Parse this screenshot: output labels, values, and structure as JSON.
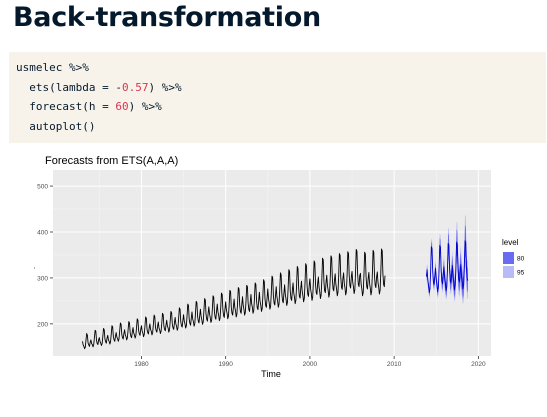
{
  "slide": {
    "title": "Back-transformation"
  },
  "code": {
    "line1": "usmelec %>%",
    "line2": {
      "pre": "  ets(lambda = -",
      "num": "0.57",
      "post": ") %>%"
    },
    "line3": {
      "pre": "  forecast(h = ",
      "num": "60",
      "post": ") %>%"
    },
    "line4": "  autoplot()"
  },
  "colors": {
    "title": "#05192d",
    "code_bg": "#f7f3eb",
    "number": "#dd3350",
    "panel": "#ebebeb",
    "series": "#000000",
    "forecast": "#0000cc",
    "pi80": "#595cf0",
    "pi95": "#b1b4f8"
  },
  "chart_data": {
    "type": "line",
    "title": "Forecasts from ETS(A,A,A)",
    "xlabel": "Time",
    "ylabel": ".",
    "xlim": [
      1969.5,
      2021.5
    ],
    "ylim": [
      130,
      535
    ],
    "x_ticks": [
      1980,
      1990,
      2000,
      2010,
      2020
    ],
    "y_ticks": [
      200,
      300,
      400,
      500
    ],
    "grid": true,
    "legend": {
      "title": "level",
      "entries": [
        "80",
        "95"
      ],
      "placement": "right"
    },
    "historical": {
      "name": "usmelec",
      "start": 1973.0,
      "step": 0.0833333,
      "values": [
        162,
        154,
        151,
        146,
        149,
        165,
        179,
        175,
        158,
        154,
        151,
        160,
        165,
        157,
        155,
        150,
        155,
        170,
        186,
        184,
        164,
        157,
        155,
        165,
        170,
        161,
        158,
        153,
        157,
        173,
        190,
        187,
        167,
        161,
        158,
        169,
        175,
        165,
        162,
        156,
        161,
        178,
        196,
        193,
        172,
        165,
        162,
        173,
        181,
        171,
        168,
        162,
        167,
        184,
        202,
        199,
        177,
        170,
        167,
        179,
        187,
        176,
        172,
        165,
        170,
        187,
        205,
        202,
        180,
        173,
        170,
        183,
        192,
        180,
        176,
        169,
        174,
        192,
        211,
        208,
        185,
        178,
        175,
        188,
        196,
        184,
        180,
        172,
        177,
        195,
        215,
        212,
        188,
        181,
        178,
        191,
        200,
        188,
        184,
        176,
        181,
        199,
        219,
        216,
        192,
        185,
        182,
        195,
        204,
        191,
        187,
        179,
        184,
        202,
        223,
        220,
        195,
        188,
        185,
        198,
        208,
        195,
        191,
        182,
        187,
        206,
        227,
        224,
        199,
        191,
        188,
        202,
        214,
        200,
        195,
        186,
        191,
        212,
        235,
        232,
        205,
        196,
        193,
        207,
        220,
        206,
        200,
        191,
        196,
        218,
        243,
        240,
        211,
        201,
        197,
        212,
        226,
        211,
        205,
        195,
        200,
        223,
        249,
        246,
        216,
        206,
        202,
        218,
        232,
        216,
        209,
        199,
        204,
        228,
        255,
        252,
        221,
        210,
        206,
        223,
        237,
        221,
        214,
        203,
        208,
        232,
        261,
        258,
        226,
        214,
        210,
        228,
        243,
        226,
        219,
        207,
        212,
        237,
        267,
        264,
        231,
        218,
        214,
        232,
        248,
        231,
        223,
        211,
        217,
        242,
        273,
        270,
        236,
        223,
        219,
        237,
        254,
        236,
        228,
        215,
        221,
        247,
        279,
        276,
        241,
        227,
        223,
        242,
        259,
        240,
        232,
        219,
        225,
        251,
        284,
        281,
        245,
        231,
        227,
        246,
        264,
        244,
        236,
        223,
        229,
        255,
        289,
        286,
        250,
        235,
        231,
        250,
        269,
        249,
        241,
        227,
        233,
        261,
        296,
        292,
        255,
        240,
        236,
        256,
        276,
        255,
        246,
        232,
        238,
        267,
        304,
        300,
        261,
        245,
        241,
        262,
        281,
        259,
        250,
        236,
        243,
        273,
        311,
        307,
        267,
        250,
        246,
        267,
        285,
        263,
        254,
        240,
        247,
        278,
        318,
        314,
        272,
        255,
        251,
        273,
        289,
        267,
        258,
        244,
        251,
        283,
        325,
        321,
        278,
        260,
        256,
        278,
        293,
        271,
        262,
        248,
        255,
        287,
        331,
        327,
        283,
        264,
        260,
        283,
        298,
        276,
        266,
        251,
        259,
        292,
        337,
        333,
        287,
        268,
        264,
        287,
        302,
        280,
        270,
        255,
        263,
        297,
        343,
        339,
        292,
        272,
        268,
        291,
        306,
        283,
        273,
        258,
        266,
        301,
        348,
        344,
        297,
        276,
        272,
        295,
        309,
        286,
        276,
        261,
        269,
        304,
        353,
        349,
        301,
        280,
        275,
        299,
        311,
        288,
        278,
        263,
        271,
        307,
        357,
        353,
        305,
        283,
        278,
        302,
        314,
        291,
        281,
        266,
        274,
        311,
        362,
        358,
        309,
        286,
        281,
        305,
        310,
        286,
        276,
        261,
        269,
        306,
        356,
        352,
        303,
        281,
        276,
        299,
        312,
        288,
        278,
        263,
        271,
        309,
        360,
        356,
        306,
        284,
        279,
        302,
        313,
        290,
        280,
        265,
        273,
        311,
        363,
        359,
        309,
        286,
        281,
        305
      ]
    },
    "forecast": {
      "start": 2013.833,
      "step": 0.0833333,
      "mean": [
        303,
        318,
        294,
        284,
        268,
        276,
        314,
        368,
        364,
        313,
        290,
        285,
        306,
        321,
        296,
        286,
        270,
        278,
        317,
        371,
        367,
        316,
        292,
        287,
        309,
        324,
        299,
        288,
        272,
        281,
        320,
        375,
        371,
        319,
        294,
        289,
        311,
        327,
        301,
        291,
        274,
        283,
        323,
        378,
        374,
        322,
        297,
        291,
        314,
        329,
        303,
        293,
        276,
        285,
        325,
        381,
        377,
        324,
        299,
        294
      ],
      "pi80_halfwidth": [
        8,
        9,
        8,
        8,
        8,
        8,
        9,
        11,
        11,
        10,
        9,
        9,
        11,
        12,
        11,
        11,
        10,
        10,
        13,
        16,
        16,
        14,
        13,
        13,
        15,
        17,
        15,
        15,
        14,
        15,
        18,
        22,
        22,
        19,
        17,
        17,
        19,
        22,
        20,
        19,
        18,
        19,
        23,
        28,
        28,
        24,
        22,
        21,
        24,
        27,
        24,
        23,
        22,
        23,
        27,
        34,
        34,
        29,
        26,
        26
      ],
      "pi95_halfwidth": [
        13,
        14,
        13,
        12,
        12,
        12,
        14,
        18,
        18,
        15,
        14,
        14,
        16,
        18,
        16,
        16,
        15,
        16,
        20,
        25,
        25,
        21,
        19,
        20,
        23,
        26,
        23,
        22,
        21,
        22,
        28,
        35,
        35,
        29,
        26,
        26,
        30,
        34,
        30,
        29,
        27,
        29,
        36,
        45,
        45,
        37,
        33,
        33,
        38,
        44,
        38,
        36,
        34,
        36,
        44,
        57,
        57,
        46,
        41,
        41
      ]
    }
  }
}
